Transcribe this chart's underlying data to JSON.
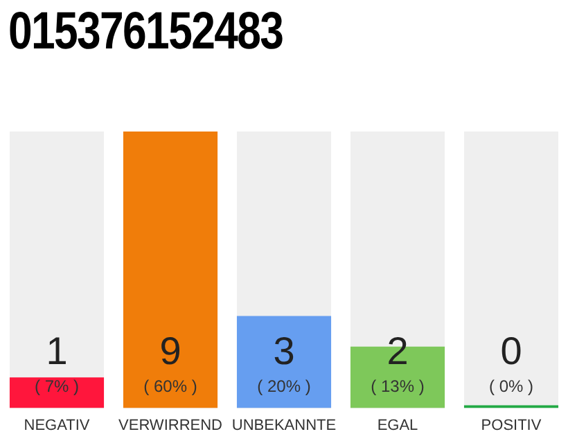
{
  "chart_data": {
    "type": "bar",
    "title": "015376152483",
    "categories": [
      "NEGATIV",
      "VERWIRREND",
      "UNBEKANNTE",
      "EGAL",
      "POSITIV"
    ],
    "values": [
      1,
      9,
      3,
      2,
      0
    ],
    "colors": [
      "#ff163c",
      "#f07d0a",
      "#669ef0",
      "#7ec85a",
      "#22aa44"
    ],
    "data_labels": true,
    "annotations": [
      "( 7% )",
      "( 60% )",
      "( 20% )",
      "( 13% )",
      "( 0% )"
    ],
    "grid": false,
    "legend": false
  }
}
